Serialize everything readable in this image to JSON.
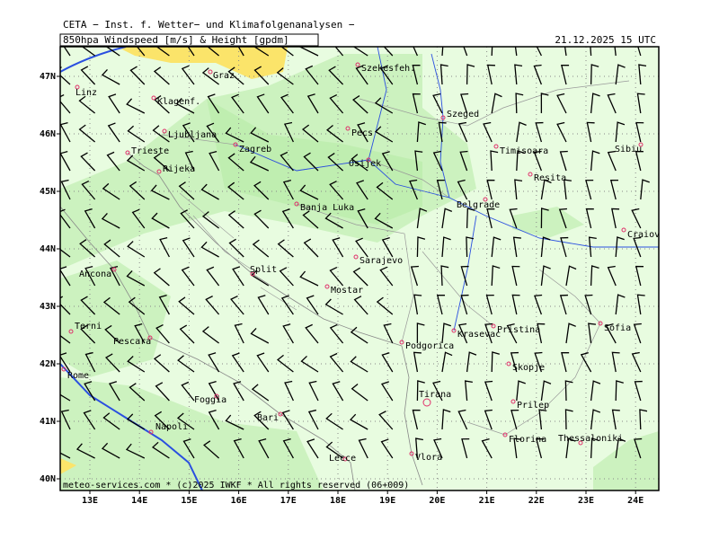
{
  "header": {
    "title": "CETA − Inst. f. Wetter− und Klimafolgenanalysen −",
    "subtitle": "850hpa Windspeed [m/s] & Height [gpdm]",
    "valid_time": "21.12.2025 15 UTC"
  },
  "axes": {
    "lon_labels": [
      "13E",
      "14E",
      "15E",
      "16E",
      "17E",
      "18E",
      "19E",
      "20E",
      "21E",
      "22E",
      "23E",
      "24E"
    ],
    "lat_labels": [
      "47N",
      "46N",
      "45N",
      "44N",
      "43N",
      "42N",
      "41N",
      "40N"
    ]
  },
  "cities": [
    "Linz",
    "Graz",
    "Szekesfeh.",
    "Klagenf.",
    "Ljubljana",
    "Zagreb",
    "Pecs",
    "Szeged",
    "Trieste",
    "Rijeka",
    "Osijek",
    "Timisoara",
    "Sibiu",
    "Resita",
    "Belgrade",
    "Banja Luka",
    "Craiova",
    "Sarajevo",
    "Ancona",
    "Split",
    "Mostar",
    "Terni",
    "Pristina",
    "Sofia",
    "Pescara",
    "Podgorica",
    "Krasevac",
    "Skopje",
    "Rome",
    "Tirana",
    "Foggia",
    "Prilep",
    "Bari",
    "Napoli",
    "Florina",
    "Thessaloniki",
    "Vlora",
    "Lecce"
  ],
  "footer": "meteo-services.com * (c)2025 IWKF * All rights reserved (06+009)"
}
